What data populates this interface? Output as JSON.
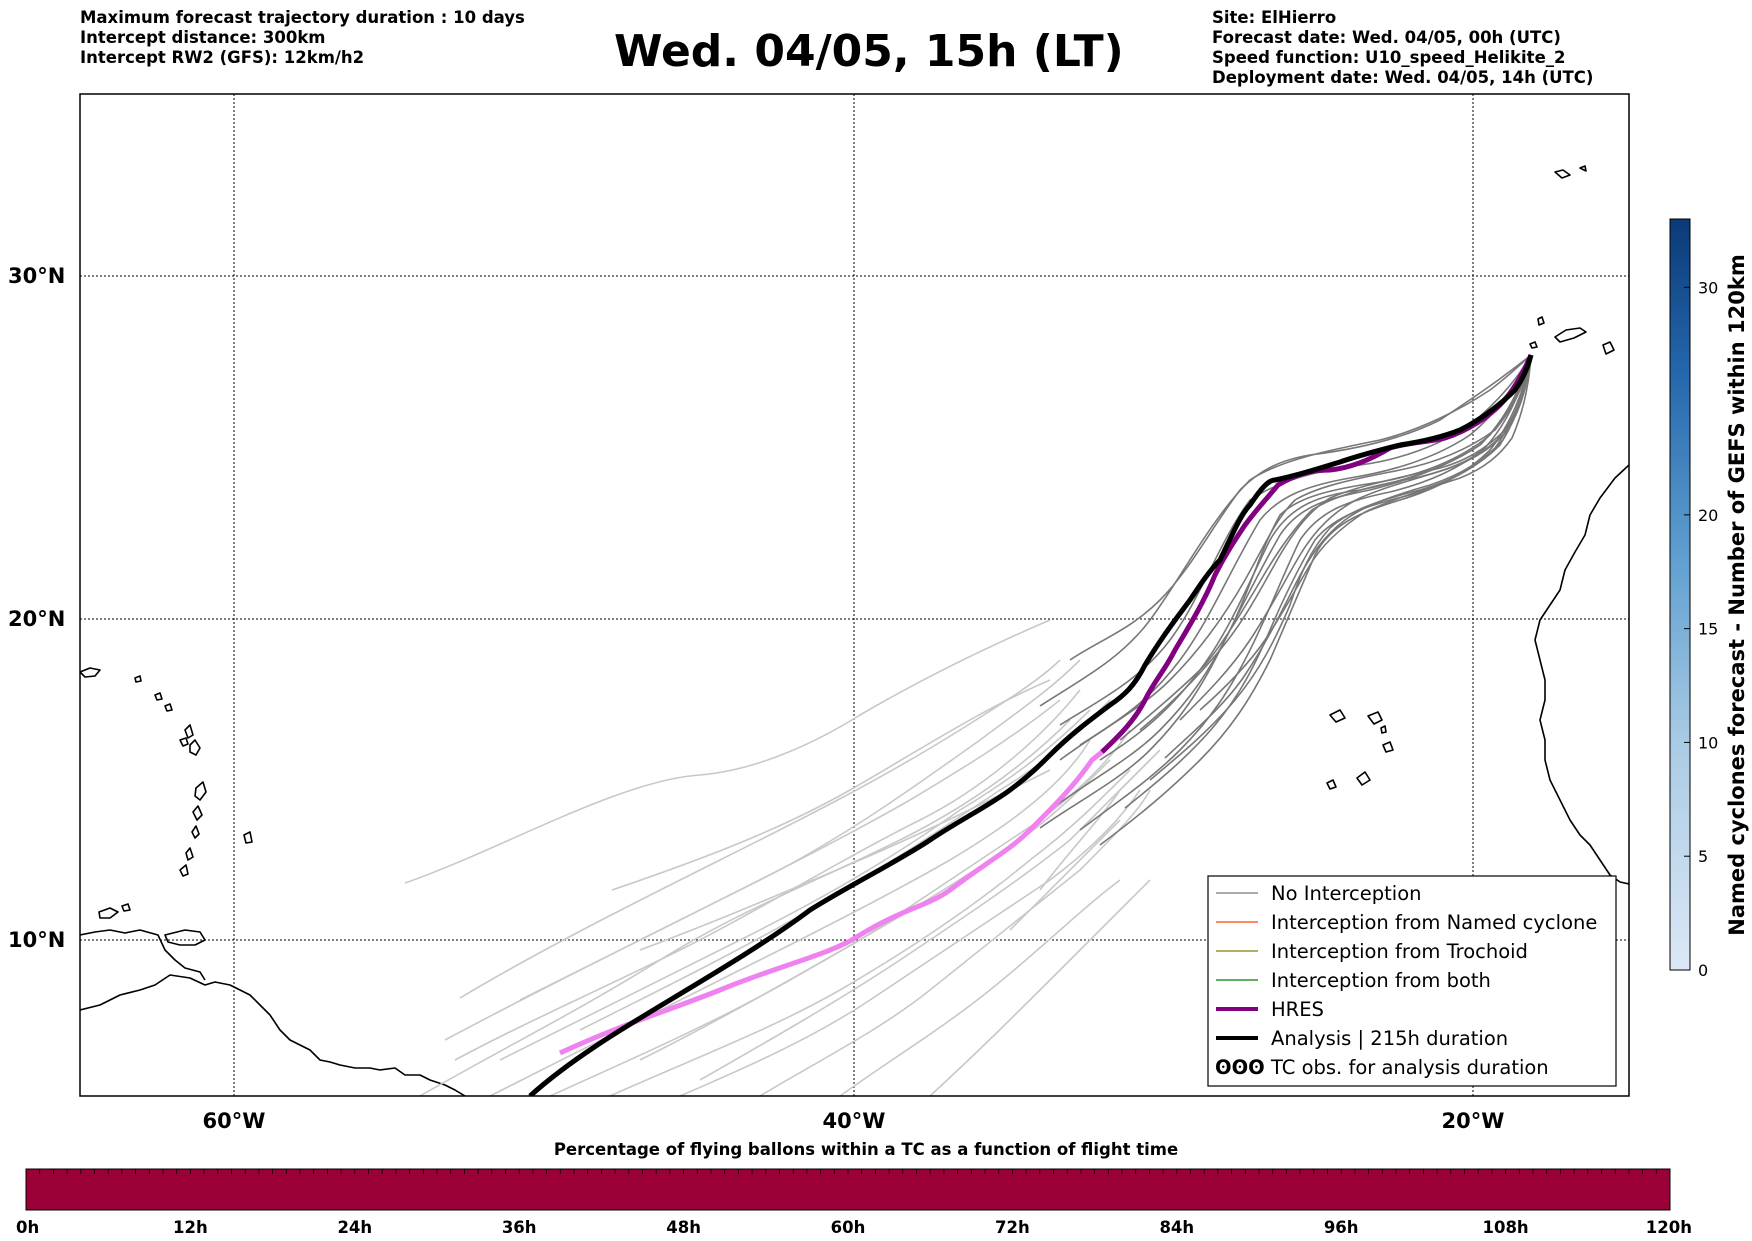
{
  "header": {
    "left_lines": [
      "Maximum forecast trajectory duration : 10 days",
      "Intercept distance: 300km",
      "Intercept RW2 (GFS):  12km/h2"
    ],
    "title": "Wed. 04/05, 15h (LT)",
    "right_lines": [
      "Site: ElHierro",
      "Forecast date: Wed. 04/05, 00h (UTC)",
      "Speed function: U10_speed_Helikite_2",
      "Deployment date: Wed. 04/05, 14h (UTC)"
    ]
  },
  "map": {
    "lon_labels": [
      "60°W",
      "40°W",
      "20°W"
    ],
    "lat_labels": [
      "30°N",
      "20°N",
      "10°N"
    ],
    "colors": {
      "no_interception": "#777777",
      "named_cyclone": "#ff4500",
      "trochoid": "#808000",
      "both": "#008000",
      "hres": "#800080",
      "hres_extension": "#ee82ee",
      "analysis": "#000000",
      "faint_members": "#c8c8c8"
    }
  },
  "legend": {
    "items": [
      {
        "label": "No Interception",
        "style": "thin",
        "color": "#777777"
      },
      {
        "label": "Interception from Named cyclone",
        "style": "thin",
        "color": "#ff4500"
      },
      {
        "label": "Interception from Trochoid",
        "style": "thin",
        "color": "#808000"
      },
      {
        "label": "Interception from both",
        "style": "thin",
        "color": "#008000"
      },
      {
        "label": "HRES",
        "style": "thick",
        "color": "#800080"
      },
      {
        "label": "Analysis | 215h duration",
        "style": "thick",
        "color": "#000000"
      },
      {
        "label": "TC obs. for analysis duration",
        "style": "symbol",
        "color": "#000000",
        "symbol": "ʘʘʘ"
      }
    ]
  },
  "colorbar": {
    "label": "Named cyclones forecast - Number of GEFS within 120km",
    "ticks": [
      "0",
      "5",
      "10",
      "15",
      "20",
      "30"
    ],
    "range": [
      0,
      33
    ]
  },
  "bottom_bar": {
    "label": "Percentage of flying ballons within a TC as a function of flight time",
    "ticks": [
      "0h",
      "12h",
      "24h",
      "36h",
      "48h",
      "60h",
      "72h",
      "84h",
      "96h",
      "108h",
      "120h"
    ],
    "fill_color": "#9b0038"
  }
}
